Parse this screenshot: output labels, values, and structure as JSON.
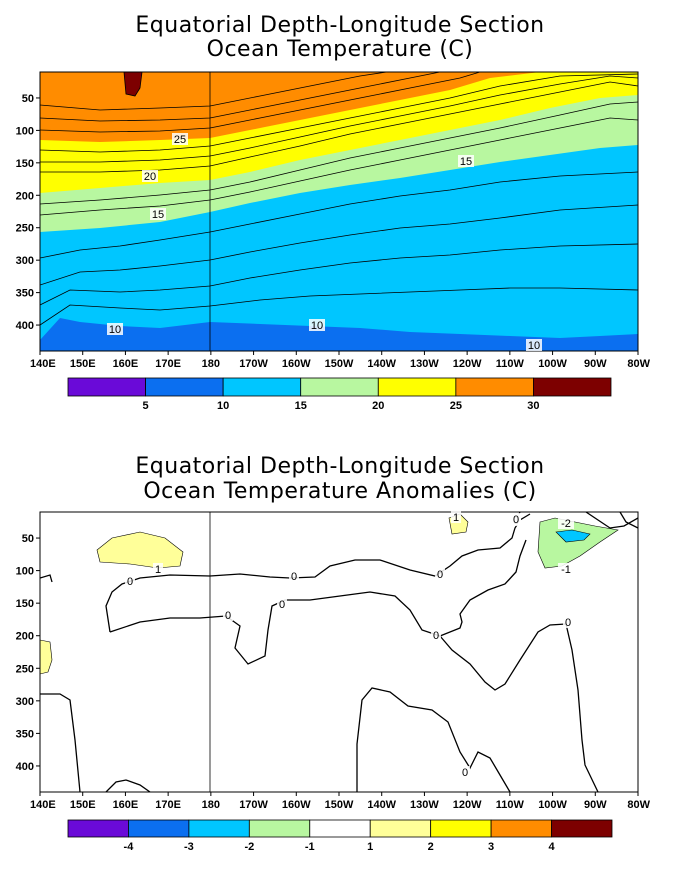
{
  "chart_data": [
    {
      "type": "heatmap",
      "title": "Equatorial Depth-Longitude Section",
      "subtitle": "Ocean Temperature (C)",
      "x_ticks": [
        "140E",
        "150E",
        "160E",
        "170E",
        "180",
        "170W",
        "160W",
        "150W",
        "140W",
        "130W",
        "120W",
        "110W",
        "100W",
        "90W",
        "80W"
      ],
      "y_ticks": [
        "50",
        "100",
        "150",
        "200",
        "250",
        "300",
        "350",
        "400"
      ],
      "y_values": [
        50,
        100,
        150,
        200,
        250,
        300,
        350,
        400
      ],
      "xlim_deg_east": [
        140,
        280
      ],
      "ylim_depth": [
        10,
        440
      ],
      "y_inverted": true,
      "legend_placement": "bottom",
      "levels": [
        "5",
        "10",
        "15",
        "20",
        "25",
        "30"
      ],
      "level_colors": [
        "#6a0ad8",
        "#0b6ff0",
        "#00c6ff",
        "#b8f7a0",
        "#ffff00",
        "#ff8c00",
        "#7d0000"
      ],
      "contour_labels": [
        "25",
        "20",
        "15",
        "10",
        "10",
        "10",
        "15"
      ],
      "isotherm_depths": {
        "x": [
          140,
          150,
          160,
          170,
          180,
          190,
          200,
          210,
          220,
          230,
          240,
          250,
          260,
          270,
          280
        ],
        "t30": [
          null,
          null,
          null,
          null,
          null,
          null,
          null,
          null,
          null,
          null,
          null,
          null,
          null,
          null,
          null
        ],
        "t25": [
          105,
          110,
          110,
          108,
          105,
          95,
          85,
          75,
          65,
          55,
          42,
          30,
          20,
          15,
          20
        ],
        "t20": [
          185,
          180,
          175,
          172,
          170,
          160,
          145,
          130,
          115,
          100,
          85,
          70,
          55,
          40,
          30
        ],
        "t15": [
          240,
          235,
          225,
          220,
          212,
          200,
          185,
          172,
          160,
          148,
          135,
          125,
          115,
          105,
          110
        ],
        "t10": [
          430,
          400,
          400,
          395,
          390,
          395,
          398,
          402,
          408,
          412,
          418,
          422,
          425,
          420,
          420
        ]
      }
    },
    {
      "type": "heatmap",
      "title": "Equatorial Depth-Longitude Section",
      "subtitle": "Ocean Temperature Anomalies (C)",
      "x_ticks": [
        "140E",
        "150E",
        "160E",
        "170E",
        "180",
        "170W",
        "160W",
        "150W",
        "140W",
        "130W",
        "120W",
        "110W",
        "100W",
        "90W",
        "80W"
      ],
      "y_ticks": [
        "50",
        "100",
        "150",
        "200",
        "250",
        "300",
        "350",
        "400"
      ],
      "y_values": [
        50,
        100,
        150,
        200,
        250,
        300,
        350,
        400
      ],
      "xlim_deg_east": [
        140,
        280
      ],
      "ylim_depth": [
        10,
        440
      ],
      "y_inverted": true,
      "legend_placement": "bottom",
      "levels": [
        "-4",
        "-3",
        "-2",
        "-1",
        "1",
        "2",
        "3",
        "4"
      ],
      "level_colors": [
        "#6a0ad8",
        "#0b6ff0",
        "#00c6ff",
        "#b8f7a0",
        "#ffffff",
        "#ffff99",
        "#ffff00",
        "#ff8c00",
        "#7d0000"
      ],
      "contour_labels": [
        "1",
        "0",
        "0",
        "0",
        "0",
        "0",
        "0",
        "0",
        "0",
        "0",
        "1",
        "0",
        "-2",
        "-1"
      ]
    }
  ]
}
